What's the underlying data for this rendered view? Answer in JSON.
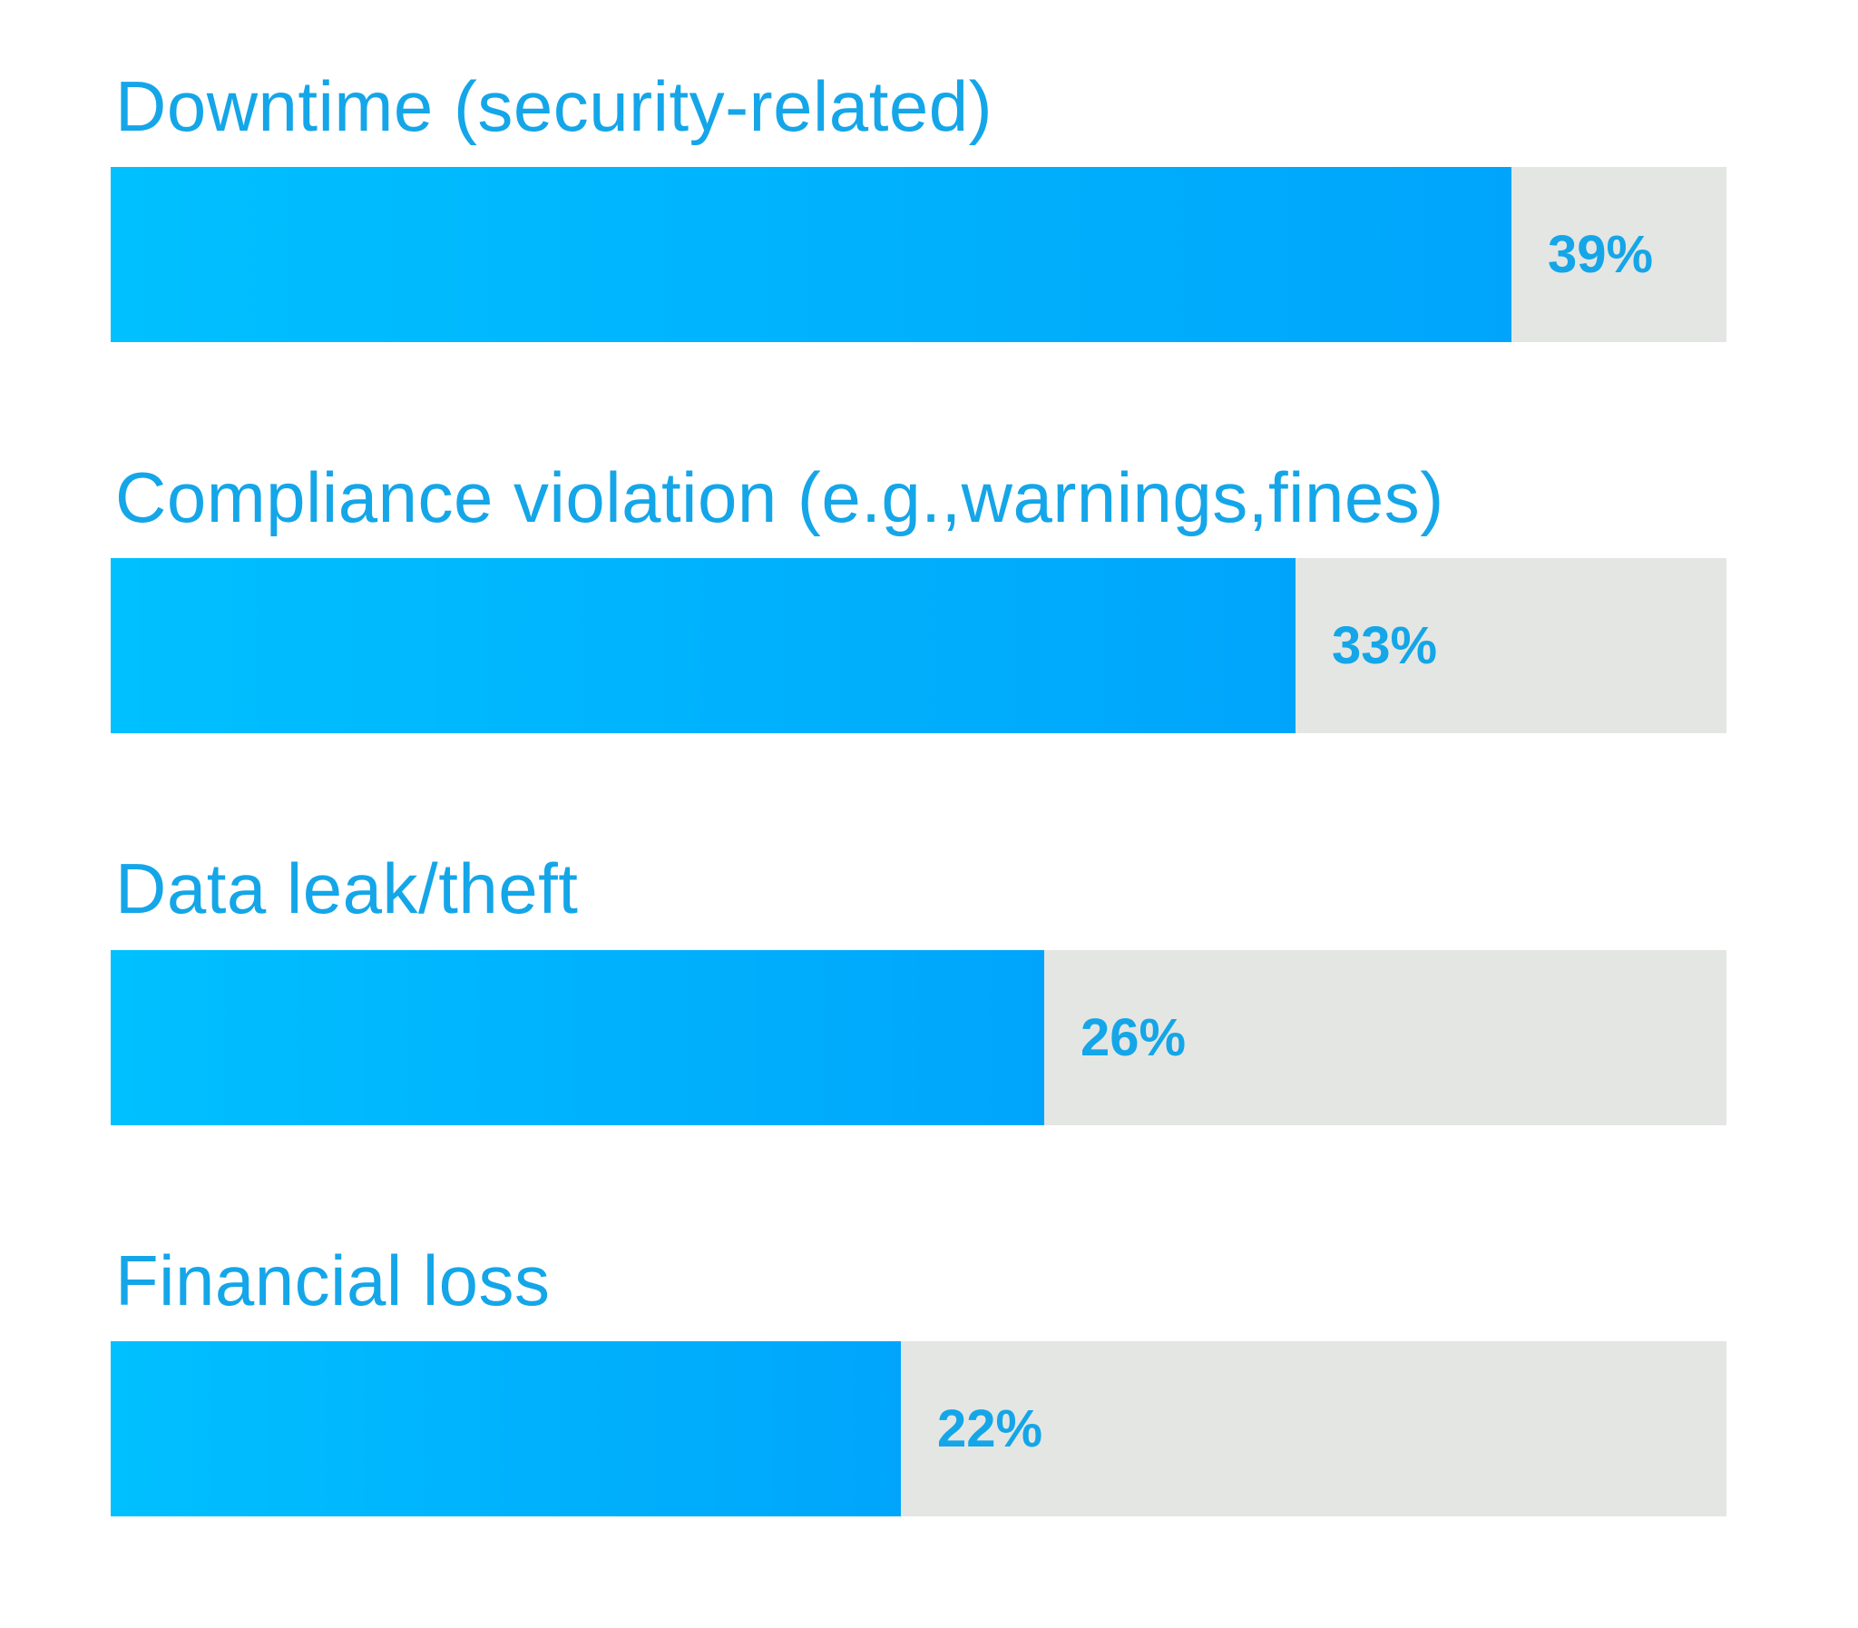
{
  "chart_data": {
    "type": "bar",
    "orientation": "horizontal",
    "categories": [
      "Downtime (security-related)",
      "Compliance violation (e.g.,warnings,fines)",
      "Data leak/theft",
      "Financial loss"
    ],
    "values": [
      39,
      33,
      26,
      22
    ],
    "value_labels": [
      "39%",
      "33%",
      "26%",
      "22%"
    ],
    "unit": "%",
    "xlim": [
      0,
      45
    ],
    "grid": false,
    "legend": "none"
  },
  "colors": {
    "accent": "#14a6e8",
    "bar_start": "#00c0ff",
    "bar_end": "#00a5fb",
    "track": "#e4e6e3",
    "background": "#ffffff"
  }
}
